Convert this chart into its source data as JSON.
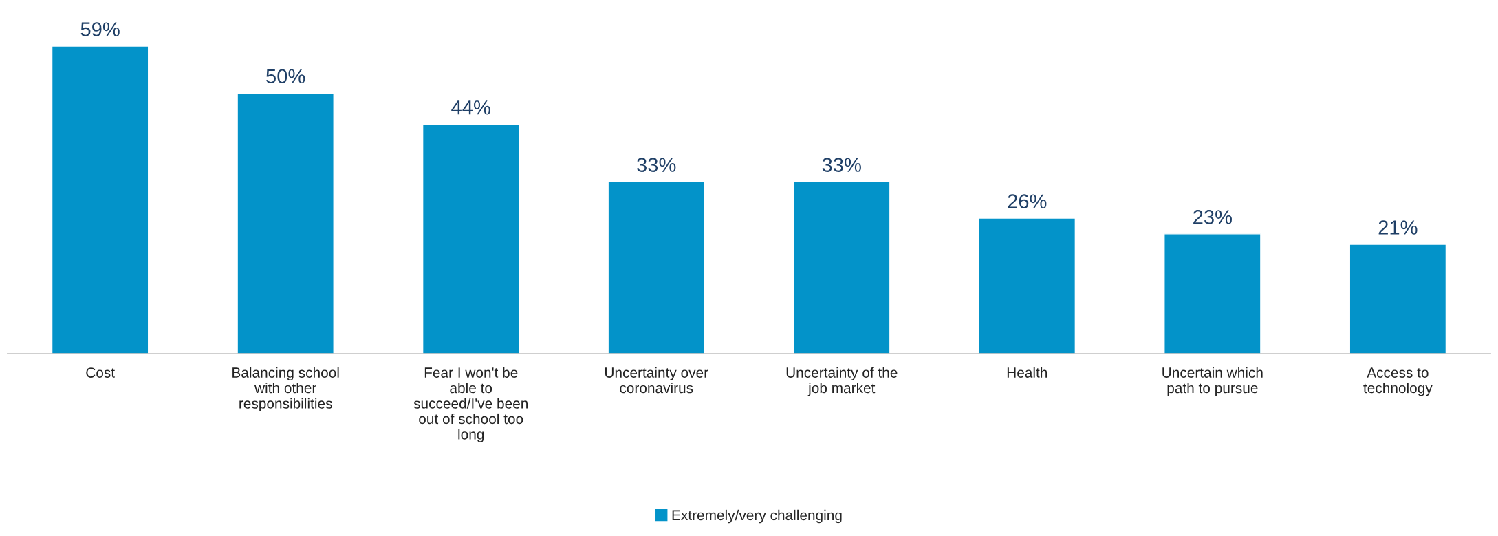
{
  "chart_data": {
    "type": "bar",
    "categories": [
      "Cost",
      "Balancing school\nwith other\nresponsibilities",
      "Fear I won't be\nable to\nsucceed/I've been\nout of school too\nlong",
      "Uncertainty over\ncoronavirus",
      "Uncertainty of the\njob market",
      "Health",
      "Uncertain which\npath to pursue",
      "Access to\ntechnology"
    ],
    "series": [
      {
        "name": "Extremely/very challenging",
        "color": "#0393c9",
        "values": [
          59,
          50,
          44,
          33,
          33,
          26,
          23,
          21
        ],
        "value_labels": [
          "59%",
          "50%",
          "44%",
          "33%",
          "33%",
          "26%",
          "23%",
          "21%"
        ]
      }
    ],
    "legend": "bottom"
  }
}
